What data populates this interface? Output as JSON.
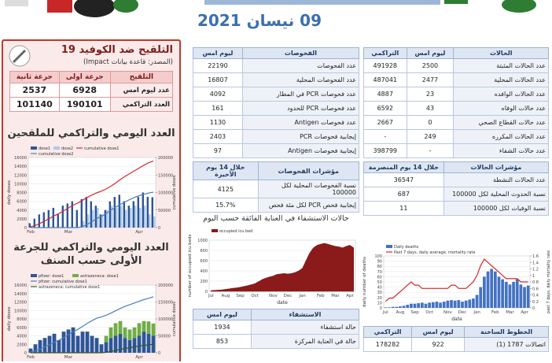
{
  "header": {
    "date": "09 نيسان 2021"
  },
  "vaccination": {
    "title": "التلقيح ضد الكوفيد 19",
    "source": "(المصدر: قاعدة بيانات Impact)",
    "table": {
      "columns": [
        "التلقيح",
        "جرعة اولى",
        "جرعة ثانية"
      ],
      "rows": [
        [
          "عدد ليوم امس",
          6928,
          2537
        ],
        [
          "العدد التراكمي",
          190101,
          101140
        ]
      ]
    }
  },
  "tests": {
    "table": {
      "columns": [
        "الفحوصات",
        "ليوم امس"
      ],
      "rows": [
        [
          "عدد الفحوصات",
          22190
        ],
        [
          "عدد الفحوصات المحلية",
          16807
        ],
        [
          "عدد فحوصات PCR في المطار",
          4092
        ],
        [
          "عدد فحوصات PCR للحدود",
          161
        ],
        [
          "عدد فحوصات Antigen",
          1130
        ],
        [
          "إيجابية فحوصات PCR",
          2403
        ],
        [
          "إيجابية فحوصات Antigen",
          97
        ]
      ]
    },
    "indicators": {
      "columns": [
        "مؤشرات الفحوصات",
        "خلال 14 يوم الأخيرة"
      ],
      "rows": [
        [
          "نسبة الفحوصات المحلية لكل 100000",
          4125
        ],
        [
          "إيجابية فحص PCR لكل مئة فحص",
          "15.7%"
        ]
      ]
    }
  },
  "hospital": {
    "columns": [
      "الاستشفاء",
      "ليوم امس"
    ],
    "rows": [
      [
        "حالة استشفاء",
        1934
      ],
      [
        "حالة في العناية المركزة",
        853
      ]
    ]
  },
  "cases": {
    "table": {
      "columns": [
        "الحالات",
        "ليوم امس",
        "التراكمي"
      ],
      "rows": [
        [
          "عدد الحالات المثبتة",
          2500,
          491928
        ],
        [
          "عدد الحالات المحلية",
          2477,
          487041
        ],
        [
          "عدد الحالات الوافده",
          23,
          4887
        ],
        [
          "عدد حالات الوفاه",
          43,
          6592
        ],
        [
          "عدد حالات القطاع الصحي",
          0,
          2667
        ],
        [
          "عدد الحالات المكرره",
          249,
          "-"
        ],
        [
          "عدد حالات الشفاء",
          "-",
          398799
        ]
      ]
    },
    "indicators": {
      "columns": [
        "مؤشرات الحالات",
        "خلال 14 يوم المنصرمة"
      ],
      "rows": [
        [
          "عدد الحالات النشطة",
          36547
        ],
        [
          "نسبة الحدوث المحلية لكل 100000",
          687
        ],
        [
          "نسبة الوفيات لكل 100000",
          11
        ]
      ]
    }
  },
  "hotlines": {
    "columns": [
      "الخطوط الساخنة",
      "ليوم امس",
      "التراكمي"
    ],
    "rows": [
      [
        "اتصالات 1787 (1)",
        922,
        178282
      ]
    ]
  },
  "chart_data": [
    {
      "type": "bar",
      "title": "العدد اليومي والتراكمي للملقحين",
      "categories": [
        "Feb",
        null,
        null,
        null,
        null,
        null,
        null,
        null,
        "Mar",
        null,
        null,
        null,
        null,
        null,
        null,
        null,
        null,
        null,
        null,
        null,
        null,
        null,
        null,
        "Apr",
        null,
        null,
        null
      ],
      "ylabel": "daily doses",
      "y2label": "cumulative doses",
      "ylim": [
        0,
        16000
      ],
      "yticks": [
        0,
        2000,
        4000,
        6000,
        8000,
        10000,
        12000,
        14000,
        16000
      ],
      "y2lim": [
        0,
        200000
      ],
      "y2ticks": [
        0,
        50000,
        100000,
        150000,
        200000
      ],
      "legend": "top",
      "stacked": false,
      "series": [
        {
          "name": "dose1",
          "type": "bar",
          "color": "#2f5597",
          "values": [
            1000,
            2000,
            3000,
            3500,
            4000,
            4500,
            3000,
            5000,
            5500,
            6000,
            4000,
            6500,
            7000,
            6000,
            5000,
            3000,
            4000,
            6000,
            7000,
            7500,
            6000,
            5000,
            6000,
            7000,
            8000,
            7000,
            6928
          ]
        },
        {
          "name": "dose2",
          "type": "bar",
          "color": "#a9c9ea",
          "values": [
            0,
            0,
            0,
            0,
            0,
            0,
            0,
            0,
            0,
            0,
            0,
            1500,
            3000,
            4000,
            4500,
            3000,
            4000,
            5000,
            4500,
            5000,
            4000,
            4500,
            5000,
            4500,
            5000,
            3000,
            2537
          ]
        },
        {
          "name": "cumulative dose1",
          "type": "line",
          "axis": "y2",
          "color": "#d62728",
          "values": [
            2000,
            6000,
            12000,
            19000,
            26000,
            34000,
            40000,
            48000,
            56000,
            64000,
            70000,
            78000,
            86000,
            93000,
            99000,
            104000,
            110000,
            118000,
            127000,
            137000,
            146000,
            154000,
            162000,
            170000,
            178000,
            185000,
            190101
          ]
        },
        {
          "name": "cumulative dose2",
          "type": "line",
          "axis": "y2",
          "color": "#4a7ebb",
          "values": [
            0,
            0,
            0,
            0,
            0,
            0,
            0,
            0,
            0,
            0,
            0,
            3000,
            9000,
            17000,
            26000,
            32000,
            40000,
            50000,
            58000,
            66000,
            73000,
            80000,
            86000,
            91000,
            95000,
            98500,
            101140
          ]
        }
      ]
    },
    {
      "type": "bar",
      "title": "العدد اليومي والتراكمي للجرعة الأولى حسب الصنف",
      "categories": [
        "Feb",
        null,
        null,
        null,
        null,
        null,
        null,
        null,
        "Mar",
        null,
        null,
        null,
        null,
        null,
        null,
        null,
        null,
        null,
        null,
        null,
        null,
        null,
        null,
        "Apr",
        null,
        null,
        null
      ],
      "ylabel": "daily doses",
      "y2label": "cumulative doses",
      "ylim": [
        0,
        16000
      ],
      "yticks": [
        0,
        2000,
        4000,
        6000,
        8000,
        10000,
        12000,
        14000,
        16000
      ],
      "y2lim": [
        0,
        200000
      ],
      "y2ticks": [
        0,
        50000,
        100000,
        150000,
        200000
      ],
      "legend": "top",
      "stacked": true,
      "series": [
        {
          "name": "pfizer: dose1",
          "type": "bar",
          "color": "#2f5597",
          "values": [
            1000,
            2000,
            3000,
            3500,
            4000,
            4500,
            3000,
            5000,
            5500,
            6000,
            4000,
            5000,
            5000,
            4000,
            3500,
            2000,
            2500,
            3500,
            4000,
            4500,
            3500,
            3000,
            3500,
            4000,
            5000,
            4500,
            4000
          ]
        },
        {
          "name": "astrazeneca: dose1",
          "type": "bar",
          "color": "#70ad47",
          "values": [
            0,
            0,
            0,
            0,
            0,
            0,
            0,
            0,
            0,
            0,
            0,
            0,
            0,
            0,
            0,
            0,
            1500,
            2500,
            3000,
            3000,
            2500,
            2500,
            2500,
            3000,
            2500,
            2900,
            2900
          ]
        },
        {
          "name": "pfizer: cumulative dose1",
          "type": "line",
          "axis": "y2",
          "color": "#4a7ebb",
          "values": [
            2000,
            6000,
            11000,
            17000,
            24000,
            31000,
            37000,
            45000,
            53000,
            62000,
            69000,
            78000,
            87000,
            95000,
            102000,
            106000,
            111000,
            117000,
            124000,
            131000,
            137000,
            142000,
            147000,
            152000,
            157000,
            161000,
            165000
          ]
        },
        {
          "name": "astrazeneca: cumulative dose1",
          "type": "line",
          "axis": "y2",
          "color": "#375623",
          "values": [
            0,
            0,
            0,
            0,
            0,
            0,
            0,
            0,
            0,
            0,
            0,
            0,
            0,
            0,
            0,
            0,
            1500,
            4000,
            7000,
            10000,
            12500,
            15000,
            17500,
            20000,
            21500,
            23500,
            25101
          ]
        }
      ]
    },
    {
      "type": "area",
      "title": "حالات الاستشفاء في العناية الفائقة حسب اليوم",
      "categories": [
        "Jul",
        null,
        null,
        null,
        "Aug",
        null,
        null,
        null,
        "Sep",
        null,
        null,
        null,
        "Oct",
        null,
        null,
        null,
        null,
        "Nov",
        null,
        null,
        null,
        "Dec",
        null,
        null,
        null,
        "Jan",
        null,
        null,
        null,
        null,
        "Feb",
        null,
        null,
        null,
        "Mar",
        null,
        null,
        null,
        "Apr",
        null
      ],
      "ylabel": "number of occupied icu beds",
      "xlabel": "date",
      "ylim": [
        0,
        1000
      ],
      "yticks": [
        0,
        200,
        400,
        600,
        800,
        1000
      ],
      "legend": "top",
      "stacked": false,
      "series": [
        {
          "name": "occupied icu bed",
          "type": "area",
          "color": "#8b1a1a",
          "values": [
            15,
            20,
            25,
            30,
            40,
            50,
            60,
            70,
            80,
            95,
            110,
            130,
            150,
            190,
            230,
            260,
            280,
            300,
            330,
            340,
            350,
            340,
            350,
            370,
            400,
            450,
            600,
            750,
            850,
            900,
            920,
            940,
            920,
            900,
            880,
            870,
            850,
            880,
            900,
            853
          ]
        }
      ]
    },
    {
      "type": "bar",
      "title": null,
      "categories": [
        "Jul",
        null,
        null,
        null,
        "Aug",
        null,
        null,
        null,
        "Sep",
        null,
        null,
        null,
        "Oct",
        null,
        null,
        null,
        null,
        "Nov",
        null,
        null,
        null,
        "Dec",
        null,
        null,
        null,
        "Jan",
        null,
        null,
        null,
        null,
        "Feb",
        null,
        null,
        null,
        "Mar",
        null,
        null,
        null,
        "Apr",
        null
      ],
      "ylabel": "daily number of deaths",
      "y2label": "past 7 days, daily mortality rate",
      "xlabel": "date",
      "ylim": [
        0,
        100
      ],
      "yticks": [
        0,
        10,
        20,
        30,
        40,
        50,
        60,
        70,
        80,
        90,
        100
      ],
      "y2lim": [
        0,
        1.6
      ],
      "y2ticks": [
        0,
        0.2,
        0.4,
        0.6,
        0.8,
        1,
        1.2,
        1.4,
        1.6
      ],
      "legend": "top",
      "stacked": false,
      "series": [
        {
          "name": "Daily deaths",
          "type": "bar",
          "color": "#4472c4",
          "values": [
            1,
            1,
            2,
            2,
            3,
            4,
            6,
            8,
            8,
            9,
            10,
            8,
            10,
            11,
            12,
            10,
            12,
            14,
            15,
            14,
            15,
            12,
            14,
            16,
            18,
            25,
            40,
            60,
            70,
            75,
            70,
            60,
            55,
            50,
            45,
            50,
            55,
            45,
            40,
            43
          ]
        },
        {
          "name": "Past 7 days, daily average, mortality rate",
          "type": "line",
          "axis": "y2",
          "color": "#d62728",
          "values": [
            0.2,
            0.3,
            0.3,
            0.4,
            0.5,
            0.6,
            0.7,
            0.8,
            0.7,
            0.7,
            0.6,
            0.6,
            0.6,
            0.6,
            0.6,
            0.6,
            0.6,
            0.6,
            0.7,
            0.7,
            0.6,
            0.6,
            0.6,
            0.7,
            0.8,
            1,
            1.3,
            1.5,
            1.4,
            1.3,
            1.2,
            1.1,
            1,
            0.9,
            0.9,
            0.9,
            0.9,
            0.8,
            0.8,
            0.8
          ]
        }
      ]
    }
  ]
}
